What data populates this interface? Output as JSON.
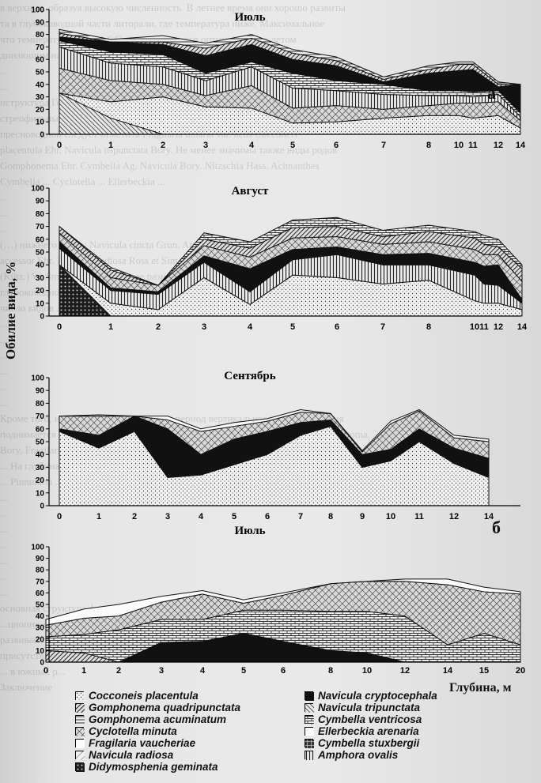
{
  "page_text": [
    "в верхних, образуя высокую численность. В летнее время они хорошо развиты",
    "та в глубоководной части литорали, где температура ниже. Максимальное",
    "что температура воды 4-6 С для них является оптимальной, а летом",
    "динающим на глубине. В ...",
    "...",
    "...",
    "нструктура Гончаров Д. Stfinin Navicula Сибирь sp. berg Acetum",
    "стреофильных F. гомонемы Kü. В третьем растительном поясе среди односезонных",
    "пресноводной следует отметить Fragilaria ulnaria var. acus Cocconeis",
    "placentula Ehr. Navicula tripunctata Bory. Не менее значимы также виды родов",
    "Gomphonema Ehr. Cymbella Ag. Navicula Bory. Nitzschia Hass. Achnanthes",
    "Cymbella ... Cyclotella ... Ellerbeckia ...",
    "...",
    "...",
    "...",
    "(…) нижнего пояса: Navicula cincta Grun. Amphora ovalis Kütz. в Ehr. Rabenh.",
    "accessor Ehr. Navicula radiosa Ross et Sims. Cyclostephanos ... (Bréb.) W. Sm. C",
    "(Kütz.) W. Sm. Pinnularia ... более разнообразна, большинство из них развиваются",
    "глубоководной части литорали среди макрофитов. Именно за счет этих представителей",
    "число видов ...",
    "...",
    "...",
    "...",
    "...",
    "...",
    "...",
    "Кроме того, на глубине ниже ... дно, а в период вертикального перемешивания",
    "поднимается в планктоне. Летне-осенние представители родов Achnanthes, Diatoma,",
    "Bory, Fragilaria, Melosira Pritz. и Aulacoseira Grun. обильно развиваются на",
    "... На глубинах ... можно выделить Melosira lineata (Dillw.) Ag.",
    "... Pinnularia ...",
    "...",
    "...",
    "...",
    "...",
    "...",
    "...",
    "...",
    "основная структура фитопланктона обогащена редкими и единичными видами. Д",
    "...ционно-ступенчатые ... широкого прибрежного берега и хорошо, хорошо",
    "развиваются мак... преобладают ... и ... а также",
    "присутствие ... Bacillariophyta.",
    "... в южных р...",
    "",
    "Заключение"
  ],
  "axis": {
    "ylabel": "Обилие вида, %",
    "xlabel": "Глубина, м",
    "yticks": [
      "0",
      "10",
      "20",
      "30",
      "40",
      "50",
      "60",
      "70",
      "80",
      "90",
      "100"
    ]
  },
  "panel_letters": {
    "a": "а",
    "b": "б"
  },
  "legend": [
    {
      "label": "Cocconeis placentula",
      "pattern": "pat-fine-dots",
      "color": "#f2f2f2"
    },
    {
      "label": "Navicula cryptocephala",
      "pattern": "pat-black",
      "color": "#1a1a1a"
    },
    {
      "label": "Gomphonema quadripunctata",
      "pattern": "pat-dense-hatch",
      "color": "#555555"
    },
    {
      "label": "Navicula tripunctata",
      "pattern": "pat-diag-dense",
      "color": "#444444"
    },
    {
      "label": "Gomphonema acuminatum",
      "pattern": "pat-hstripe",
      "color": "#888888"
    },
    {
      "label": "Cymbella ventricosa",
      "pattern": "pat-brick",
      "color": "#9a9a9a"
    },
    {
      "label": "Cyclotella minuta",
      "pattern": "pat-cross",
      "color": "#6a6a6a"
    },
    {
      "label": "Ellerbeckia arenaria",
      "pattern": "pat-white",
      "color": "#ffffff"
    },
    {
      "label": "Fragilaria vaucheriae",
      "pattern": "pat-white",
      "color": "#ffffff"
    },
    {
      "label": "Cymbella stuxbergii",
      "pattern": "pat-dark-cross",
      "color": "#2a2a2a"
    },
    {
      "label": "Navicula radiosa",
      "pattern": "pat-diag-light",
      "color": "#b0b0b0"
    },
    {
      "label": "Amphora ovalis",
      "pattern": "pat-vstripe",
      "color": "#777777"
    },
    {
      "label": "Didymosphenia geminata",
      "pattern": "pat-dark-dots",
      "color": "#1f1f1f"
    }
  ],
  "chart_data": [
    {
      "type": "area",
      "title": "Июль",
      "panel": "а",
      "x": [
        "0",
        "1",
        "2",
        "3",
        "4",
        "5",
        "6",
        "7",
        "8",
        "10",
        "11",
        "12",
        "14"
      ],
      "ylim": [
        0,
        100
      ],
      "series": [
        {
          "pattern": "pat-diag-dense",
          "values": [
            33,
            13,
            0,
            0,
            0,
            0,
            0,
            0,
            0,
            0,
            0,
            0,
            0
          ]
        },
        {
          "pattern": "pat-fine-dots",
          "values": [
            0,
            13,
            30,
            22,
            21,
            9,
            10,
            13,
            15,
            15,
            13,
            15,
            5
          ]
        },
        {
          "pattern": "pat-cross",
          "values": [
            20,
            17,
            10,
            9,
            18,
            12,
            13,
            7,
            8,
            10,
            12,
            11,
            6
          ]
        },
        {
          "pattern": "pat-vstripe",
          "values": [
            17,
            14,
            14,
            12,
            15,
            16,
            12,
            12,
            8,
            6,
            5,
            6,
            3
          ]
        },
        {
          "pattern": "pat-brick",
          "values": [
            5,
            9,
            10,
            6,
            4,
            12,
            8,
            8,
            4,
            4,
            4,
            3,
            3
          ]
        },
        {
          "pattern": "pat-black",
          "values": [
            3,
            8,
            8,
            14,
            14,
            11,
            12,
            2,
            14,
            16,
            18,
            3,
            23
          ]
        },
        {
          "pattern": "pat-dense-hatch",
          "values": [
            3,
            0,
            2,
            6,
            5,
            5,
            4,
            2,
            3,
            5,
            4,
            2,
            0
          ]
        },
        {
          "pattern": "pat-hstripe",
          "values": [
            3,
            2,
            5,
            4,
            3,
            3,
            3,
            2,
            3,
            2,
            2,
            2,
            0
          ]
        }
      ]
    },
    {
      "type": "area",
      "title": "Август",
      "x": [
        "0",
        "1",
        "2",
        "3",
        "4",
        "5",
        "6",
        "7",
        "8",
        "10",
        "11",
        "12",
        "14"
      ],
      "ylim": [
        0,
        100
      ],
      "series": [
        {
          "pattern": "pat-dark-dots",
          "values": [
            40,
            0,
            0,
            0,
            0,
            0,
            0,
            0,
            0,
            0,
            0,
            0,
            0
          ]
        },
        {
          "pattern": "pat-fine-dots",
          "values": [
            0,
            10,
            5,
            30,
            9,
            32,
            30,
            25,
            28,
            12,
            10,
            10,
            5
          ]
        },
        {
          "pattern": "pat-vstripe",
          "values": [
            13,
            10,
            12,
            12,
            10,
            12,
            18,
            15,
            12,
            20,
            15,
            14,
            5
          ]
        },
        {
          "pattern": "pat-black",
          "values": [
            5,
            2,
            2,
            5,
            18,
            8,
            6,
            8,
            9,
            10,
            14,
            16,
            3
          ]
        },
        {
          "pattern": "pat-cross",
          "values": [
            7,
            8,
            5,
            8,
            9,
            9,
            8,
            8,
            9,
            10,
            9,
            8,
            14
          ]
        },
        {
          "pattern": "pat-dense-hatch",
          "values": [
            5,
            6,
            0,
            5,
            7,
            8,
            8,
            6,
            8,
            9,
            8,
            6,
            10
          ]
        },
        {
          "pattern": "pat-brick",
          "values": [
            0,
            2,
            0,
            5,
            5,
            6,
            7,
            5,
            5,
            5,
            7,
            6,
            3
          ]
        }
      ]
    },
    {
      "type": "area",
      "title": "Сентябрь",
      "x": [
        "0",
        "1",
        "2",
        "3",
        "4",
        "5",
        "6",
        "7",
        "8",
        "9",
        "10",
        "11",
        "12",
        "14"
      ],
      "ylim": [
        0,
        100
      ],
      "series": [
        {
          "pattern": "pat-fine-dots",
          "values": [
            58,
            45,
            58,
            22,
            24,
            32,
            40,
            55,
            62,
            30,
            35,
            50,
            33,
            22
          ]
        },
        {
          "pattern": "pat-black",
          "values": [
            2,
            10,
            12,
            38,
            16,
            20,
            18,
            10,
            5,
            10,
            9,
            10,
            12,
            15
          ]
        },
        {
          "pattern": "pat-cross",
          "values": [
            10,
            15,
            0,
            7,
            18,
            10,
            8,
            8,
            5,
            2,
            20,
            14,
            8,
            13
          ]
        },
        {
          "pattern": "pat-white",
          "values": [
            0,
            1,
            0,
            3,
            2,
            3,
            2,
            2,
            0,
            1,
            2,
            1,
            2,
            2
          ]
        }
      ]
    },
    {
      "type": "area",
      "title": "Июль",
      "panel": "б",
      "x": [
        "0",
        "1",
        "2",
        "3",
        "4",
        "5",
        "6",
        "8",
        "10",
        "12",
        "14",
        "15",
        "20"
      ],
      "ylim": [
        0,
        100
      ],
      "series": [
        {
          "pattern": "pat-dense-hatch",
          "values": [
            10,
            8,
            0,
            0,
            0,
            0,
            0,
            0,
            0,
            0,
            0,
            0,
            0
          ]
        },
        {
          "pattern": "pat-black",
          "values": [
            0,
            0,
            0,
            17,
            18,
            25,
            18,
            10,
            8,
            0,
            0,
            0,
            0
          ]
        },
        {
          "pattern": "pat-brick",
          "values": [
            12,
            16,
            28,
            20,
            19,
            20,
            27,
            34,
            36,
            40,
            15,
            25,
            15
          ]
        },
        {
          "pattern": "pat-cross",
          "values": [
            10,
            14,
            12,
            15,
            22,
            6,
            13,
            24,
            26,
            30,
            52,
            36,
            44
          ]
        },
        {
          "pattern": "pat-white",
          "values": [
            5,
            8,
            10,
            5,
            3,
            3,
            2,
            0,
            0,
            2,
            5,
            4,
            2
          ]
        }
      ]
    }
  ]
}
